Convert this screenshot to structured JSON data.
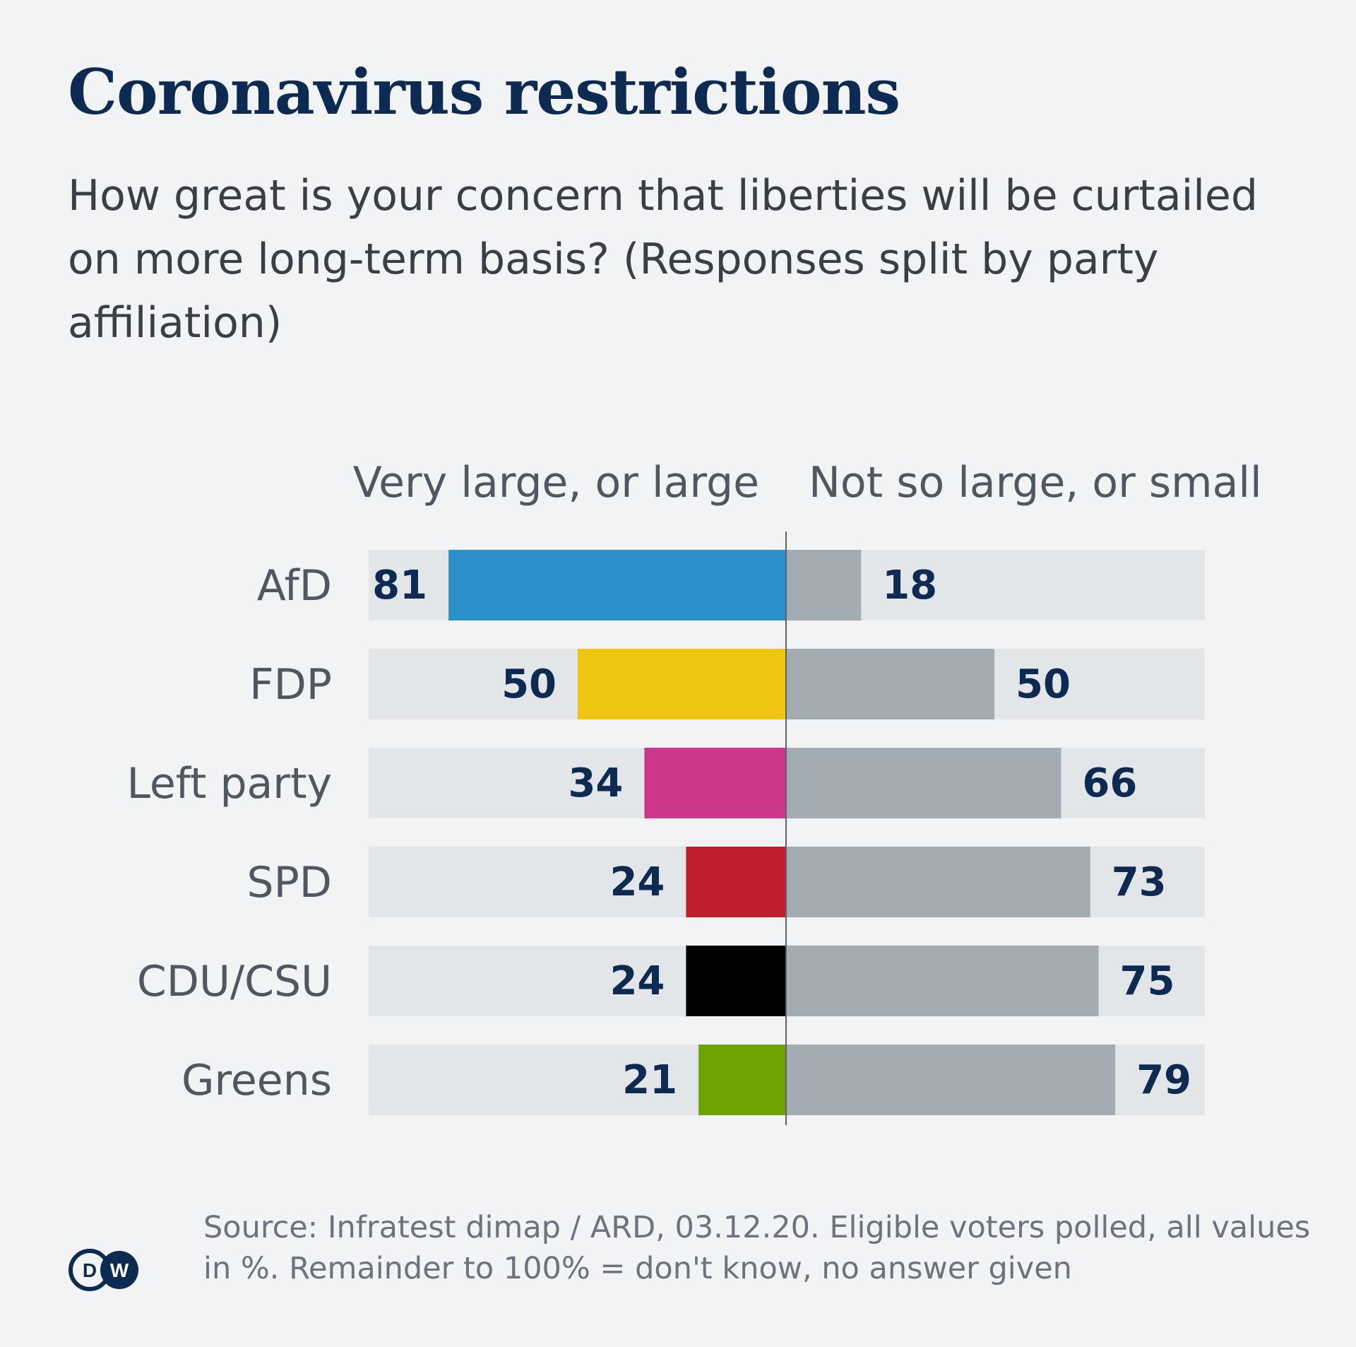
{
  "title": "Coronavirus restrictions",
  "subtitle": "How great is your concern that liberties will be curtailed on more long-term basis? (Responses split by party affiliation)",
  "source": "Source: Infratest dimap / ARD, 03.12.20. Eligible voters polled, all values in %. Remainder to 100% = don't know, no answer given",
  "logo_text": "DW",
  "colors": {
    "title": "#0c2a52",
    "track": "#e3e6e9",
    "right_bar": "#a3abb3",
    "value_text": "#0c2a52",
    "label_text": "#505760"
  },
  "chart_data": {
    "type": "bar",
    "orientation": "diverging-horizontal",
    "series_headers": [
      "Very large, or large",
      "Not so large, or small"
    ],
    "categories": [
      "AfD",
      "FDP",
      "Left party",
      "SPD",
      "CDU/CSU",
      "Greens"
    ],
    "series": [
      {
        "name": "Very large, or large",
        "values": [
          81,
          50,
          34,
          24,
          24,
          21
        ],
        "colors": [
          "#2b8fc9",
          "#efc60f",
          "#cd378b",
          "#be1f2e",
          "#000000",
          "#6ea300"
        ]
      },
      {
        "name": "Not so large, or small",
        "values": [
          18,
          50,
          66,
          73,
          75,
          79
        ],
        "color": "#a3abb3"
      }
    ],
    "xlim": [
      0,
      100
    ],
    "unit": "%"
  }
}
